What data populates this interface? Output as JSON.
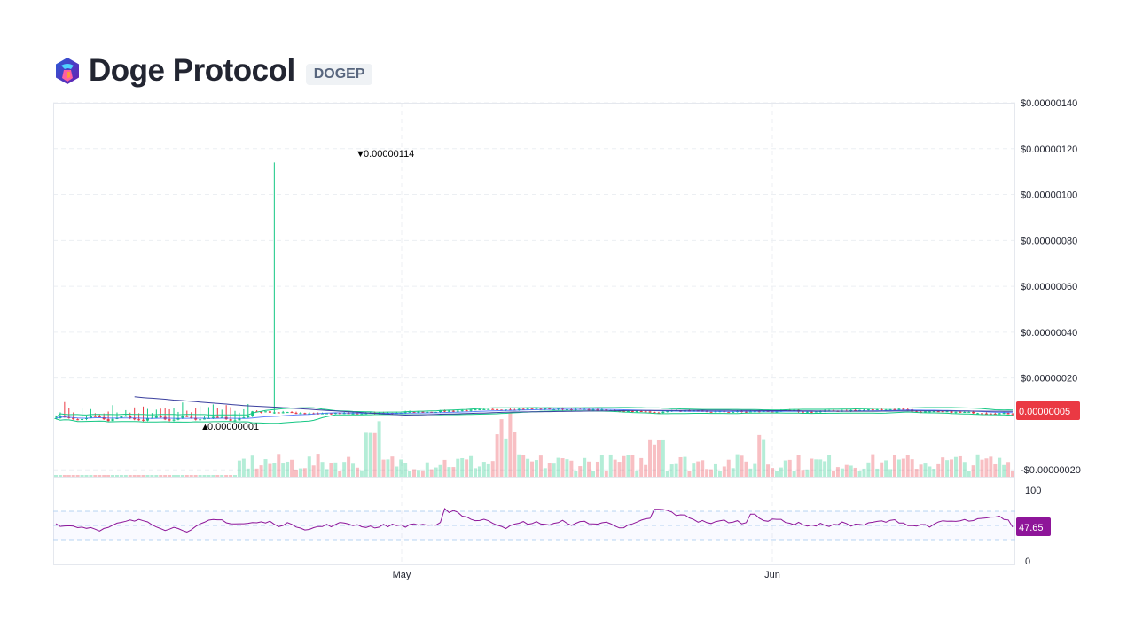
{
  "header": {
    "name": "Doge Protocol",
    "symbol": "DOGEP",
    "logo_icon": "doge-protocol-logo-icon"
  },
  "colors": {
    "up": "#16c784",
    "down": "#ea3943",
    "rsi": "#8e1599",
    "band": "#3861fb",
    "price_badge": "#ea3943"
  },
  "chart_data": {
    "type": "candlestick",
    "price_axis": {
      "ticks": [
        "$0.00000140",
        "$0.00000120",
        "$0.00000100",
        "$0.00000080",
        "$0.00000060",
        "$0.00000040",
        "$0.00000020",
        "-$0.00000020"
      ],
      "tick_values": [
        1.4e-06,
        1.2e-06,
        1e-06,
        8e-07,
        6e-07,
        4e-07,
        2e-07,
        -2e-07
      ],
      "range": [
        -2.3e-07,
        1.4e-06
      ]
    },
    "rsi_axis": {
      "ticks": [
        "100",
        "0"
      ],
      "range": [
        0,
        100
      ],
      "levels": [
        70,
        50,
        30
      ]
    },
    "x_axis": {
      "labels": [
        "May",
        "Jun"
      ]
    },
    "grid": true,
    "annotations": {
      "high_label": "0.00000114",
      "low_label": "0.00000001"
    },
    "current_price_label": "0.00000005",
    "current_rsi_label": "47.65",
    "spike": {
      "date_index": 50,
      "high": 1.14e-06
    },
    "overlays": [
      "bollinger-bands"
    ],
    "panes": [
      "price",
      "volume",
      "rsi"
    ]
  }
}
